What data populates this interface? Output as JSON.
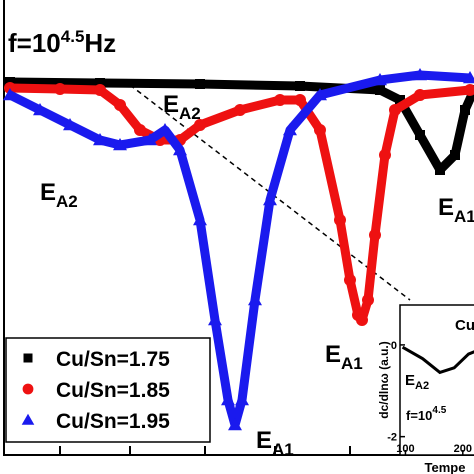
{
  "chart_data": {
    "type": "line",
    "title": {
      "base": "f=10",
      "exponent": "4.5",
      "unit": "Hz"
    },
    "xlim": [
      0,
      474
    ],
    "ylim": [
      -370,
      85
    ],
    "legend": "lower left",
    "series": [
      {
        "name": "Cu/Sn=1.75",
        "color": "#000000",
        "marker": "square",
        "x": [
          10,
          100,
          200,
          300,
          380,
          400,
          420,
          440,
          455,
          465,
          474
        ],
        "values": [
          3,
          2,
          1,
          -1,
          -5,
          -15,
          -50,
          -85,
          -70,
          -25,
          -5
        ]
      },
      {
        "name": "Cu/Sn=1.85",
        "color": "#ee1111",
        "marker": "circle",
        "x": [
          10,
          60,
          100,
          120,
          140,
          160,
          180,
          200,
          240,
          280,
          300,
          320,
          340,
          350,
          358,
          362,
          368,
          375,
          385,
          395,
          420,
          470
        ],
        "values": [
          -3,
          -4,
          -5,
          -20,
          -45,
          -55,
          -55,
          -40,
          -25,
          -15,
          -15,
          -45,
          -135,
          -195,
          -230,
          -235,
          -215,
          -150,
          -70,
          -25,
          -10,
          -5
        ]
      },
      {
        "name": "Cu/Sn=1.95",
        "color": "#1a1aee",
        "marker": "triangle",
        "x": [
          10,
          40,
          70,
          100,
          120,
          150,
          165,
          180,
          200,
          215,
          228,
          235,
          242,
          255,
          270,
          290,
          320,
          380,
          420,
          470
        ],
        "values": [
          -10,
          -25,
          -40,
          -55,
          -60,
          -55,
          -45,
          -65,
          -135,
          -235,
          -315,
          -340,
          -315,
          -215,
          -115,
          -45,
          -10,
          5,
          10,
          7
        ]
      }
    ],
    "annotations": [
      {
        "main": "E",
        "sub": "A2"
      },
      {
        "main": "E",
        "sub": "A2"
      },
      {
        "main": "E",
        "sub": "A1"
      },
      {
        "main": "E",
        "sub": "A1"
      },
      {
        "main": "E",
        "sub": "A1"
      }
    ],
    "inset": {
      "title": "Cu",
      "ylabel": "dc/dlnω (a.u.)",
      "xlabel": "Tempe",
      "note": {
        "base": "f=10",
        "exponent": "4.5"
      },
      "annotation": {
        "main": "E",
        "sub": "A2"
      },
      "xlim": [
        90.5,
        230
      ],
      "ylim": [
        -2.4,
        0.87
      ],
      "xticks": [
        100,
        200
      ],
      "yticks": [
        0,
        -2
      ],
      "color": "#000000",
      "x": [
        95,
        130,
        160,
        185,
        210,
        230
      ],
      "values": [
        -0.05,
        -0.3,
        -0.6,
        -0.5,
        -0.2,
        -0.1
      ]
    }
  }
}
